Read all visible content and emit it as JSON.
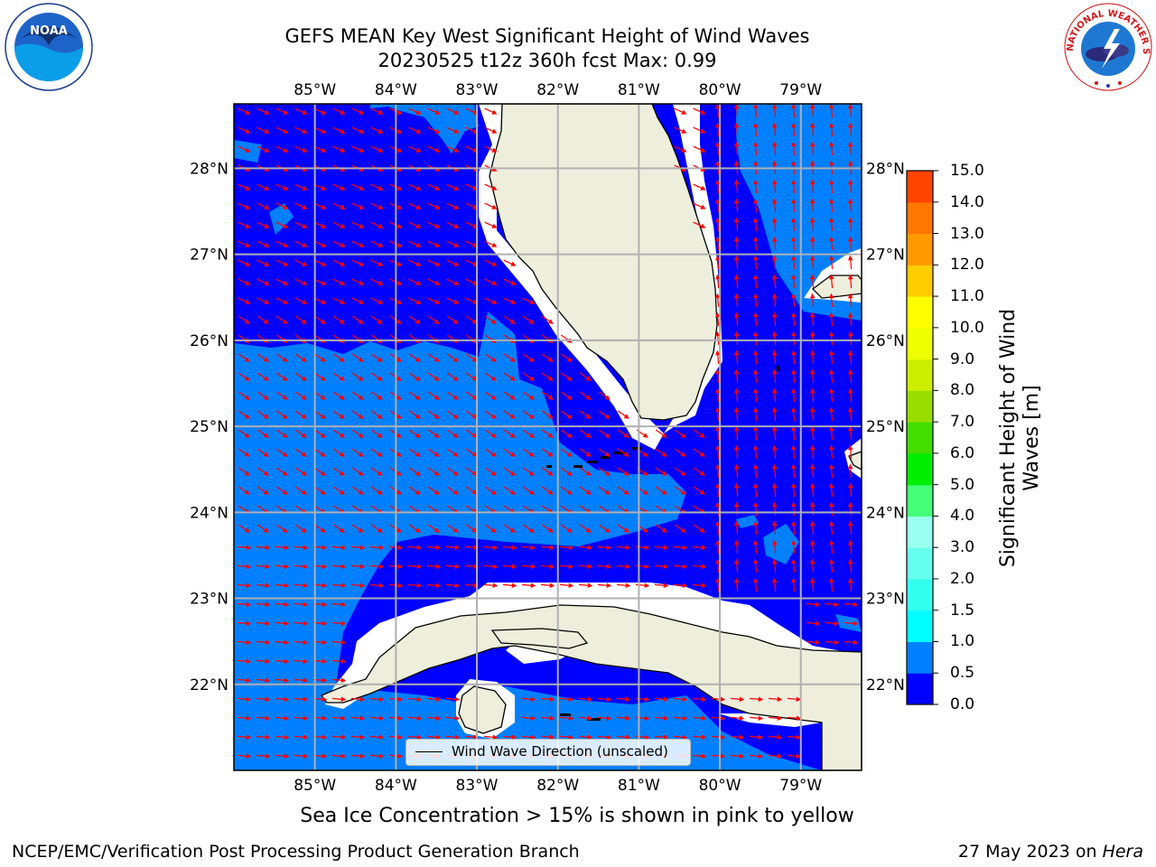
{
  "header": {
    "title_line1": "GEFS MEAN Key West Significant Height of Wind Waves",
    "title_line2": "20230525 t12z 360h fcst   Max: 0.99"
  },
  "map": {
    "lon_range": [
      -86.0,
      -78.25
    ],
    "lat_range": [
      21.0,
      28.75
    ],
    "lon_ticks": [
      "85°W",
      "84°W",
      "83°W",
      "82°W",
      "81°W",
      "80°W",
      "79°W"
    ],
    "lat_ticks": [
      "22°N",
      "23°N",
      "24°N",
      "25°N",
      "26°N",
      "27°N",
      "28°N"
    ],
    "legend_label": "Wind Wave Direction (unscaled)",
    "arrow_color": "#ff0000",
    "land_color": "#eeeedc",
    "colors": {
      "band_0_0p5": "#0000ff",
      "band_0p5_1": "#0080ff"
    }
  },
  "colorbar": {
    "label": "Significant Height of Wind Waves [m]",
    "ticks": [
      "0.0",
      "0.5",
      "1.0",
      "1.5",
      "2.0",
      "3.0",
      "4.0",
      "5.0",
      "6.0",
      "7.0",
      "8.0",
      "9.0",
      "10.0",
      "11.0",
      "12.0",
      "13.0",
      "14.0",
      "15.0"
    ],
    "colors": [
      "#0000ff",
      "#0080ff",
      "#00ffff",
      "#33ffee",
      "#66ffee",
      "#99ffee",
      "#44ff77",
      "#00ee00",
      "#44dd00",
      "#99dd00",
      "#ccee00",
      "#eeff00",
      "#ffff00",
      "#ffcc00",
      "#ff9900",
      "#ff7700",
      "#ff4400",
      "#ff0000"
    ]
  },
  "notes": {
    "ice": "Sea Ice Concentration > 15% is shown in pink to yellow",
    "footer_left": "NCEP/EMC/Verification Post Processing Product Generation Branch",
    "footer_date": "27 May 2023 on ",
    "footer_machine": "Hera"
  },
  "logos": {
    "noaa": "NOAA",
    "nws": "NATIONAL WEATHER SERVICE"
  }
}
